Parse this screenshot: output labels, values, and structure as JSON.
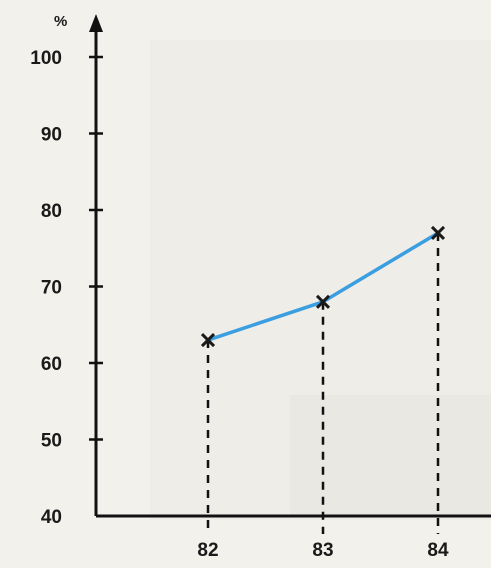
{
  "chart_data": {
    "type": "line",
    "title": "",
    "xlabel": "",
    "ylabel": "%",
    "categories": [
      "82",
      "83",
      "84"
    ],
    "series": [
      {
        "values": [
          63,
          68,
          77
        ]
      }
    ],
    "ylim": [
      40,
      100
    ],
    "yticks": [
      40,
      50,
      60,
      70,
      80,
      90,
      100
    ],
    "ytick_labels": [
      "40",
      "50",
      "60",
      "70",
      "80",
      "90",
      "100"
    ],
    "grid": false,
    "drop_lines": "dashed",
    "colors": {
      "line": "#3a9ee0",
      "marker": "#1a1a1a",
      "axis": "#111111",
      "background": "#f3f1ec"
    }
  }
}
